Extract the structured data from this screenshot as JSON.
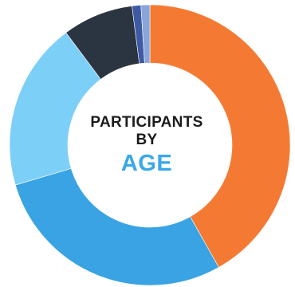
{
  "chart_data": {
    "type": "pie",
    "donut": true,
    "title_lines": [
      "PARTICIPANTS",
      "BY"
    ],
    "title_emphasis": "AGE",
    "title_emphasis_color": "#3aa8e8",
    "categories": [
      "",
      "",
      "",
      "",
      "",
      ""
    ],
    "values": [
      41,
      28,
      19,
      8,
      1,
      1
    ],
    "colors": [
      "#f47a33",
      "#3aa3e3",
      "#7ccff7",
      "#2b3441",
      "#3f5aa5",
      "#89a6db"
    ],
    "start_angle_deg": 0,
    "legend": "none"
  }
}
